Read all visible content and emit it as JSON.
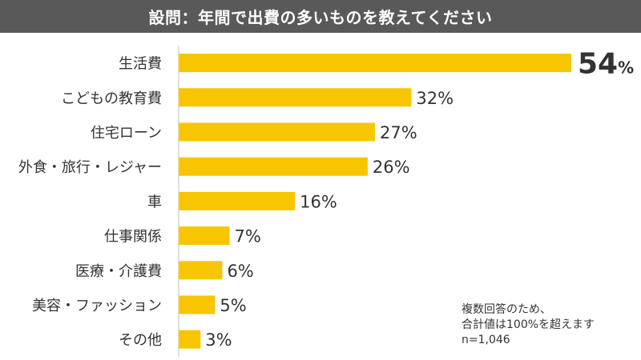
{
  "header": {
    "question": "設問：年間で出費の多いものを教えてください"
  },
  "colors": {
    "bar": "#f7c600",
    "header_bg": "#595959",
    "text": "#333333",
    "axis": "#bfbfbf"
  },
  "chart_data": {
    "type": "bar",
    "orientation": "horizontal",
    "title": "設問：年間で出費の多いものを教えてください",
    "categories": [
      "生活費",
      "こどもの教育費",
      "住宅ローン",
      "外食・旅行・レジャー",
      "車",
      "仕事関係",
      "医療・介護費",
      "美容・ファッション",
      "その他"
    ],
    "values": [
      54,
      32,
      27,
      26,
      16,
      7,
      6,
      5,
      3
    ],
    "value_labels": [
      "54%",
      "32%",
      "27%",
      "26%",
      "16%",
      "7%",
      "6%",
      "5%",
      "3%"
    ],
    "xlim": [
      0,
      55
    ],
    "grid": false,
    "legend": "none"
  },
  "note": {
    "line1": "複数回答のため、",
    "line2": "合計値は100%を超えます",
    "line3": "n=1,046"
  }
}
